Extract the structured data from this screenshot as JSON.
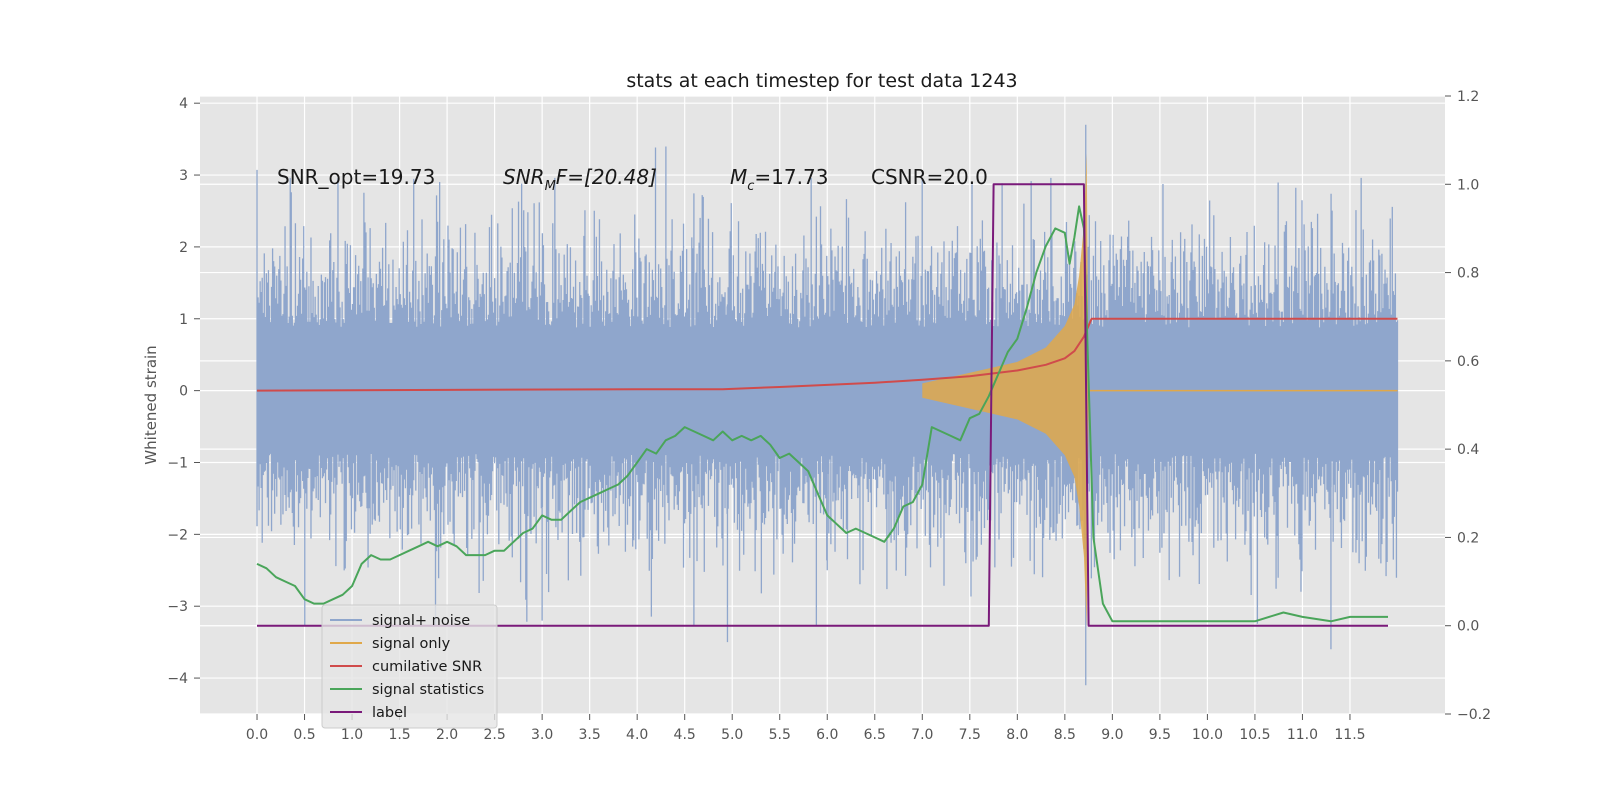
{
  "chart_data": {
    "type": "line",
    "title": "stats at each timestep for test data 1243",
    "ylabel": "Whitened strain",
    "y2label": "",
    "xlabel": "",
    "xlim": [
      -0.6,
      12.5
    ],
    "ylim": [
      -4.5,
      4.1
    ],
    "y2lim": [
      -0.2,
      1.2
    ],
    "xticks": [
      "0.0",
      "0.5",
      "1.0",
      "1.5",
      "2.0",
      "2.5",
      "3.0",
      "3.5",
      "4.0",
      "4.5",
      "5.0",
      "5.5",
      "6.0",
      "6.5",
      "7.0",
      "7.5",
      "8.0",
      "8.5",
      "9.0",
      "9.5",
      "10.0",
      "10.5",
      "11.0",
      "11.5"
    ],
    "yticks": [
      "4",
      "3",
      "2",
      "1",
      "0",
      "−1",
      "−2",
      "−3",
      "−4"
    ],
    "y2ticks": [
      "1.2",
      "1.0",
      "0.8",
      "0.6",
      "0.4",
      "0.2",
      "0.0",
      "−0.2"
    ],
    "grid": true,
    "legend_position": "lower-left",
    "annotations": {
      "snr_opt": "SNR_opt=19.73",
      "snr_mf_main": "SNR",
      "snr_mf_sub": "M",
      "snr_mf_rest": "F=[20.48]",
      "mc_main": "M",
      "mc_sub": "c",
      "mc_rest": "=17.73",
      "csnr": "CSNR=20.0"
    },
    "series": [
      {
        "name": "signal+ noise",
        "axis": "left",
        "color": "#8fa6cc",
        "x_range": [
          0.0,
          12.0
        ],
        "envelope_typical": 1.6,
        "peak_max": 3.7,
        "peak_min": -4.1
      },
      {
        "name": "signal only",
        "axis": "left",
        "color": "#e0a84a",
        "x": [
          7.0,
          7.5,
          8.0,
          8.3,
          8.5,
          8.6,
          8.65,
          8.7,
          8.73,
          8.75
        ],
        "amplitude": [
          0.1,
          0.25,
          0.4,
          0.6,
          0.9,
          1.2,
          1.6,
          2.3,
          3.3,
          0
        ]
      },
      {
        "name": "cumilative SNR",
        "axis": "left",
        "color": "#d04b4b",
        "x": [
          0.0,
          2.0,
          4.0,
          4.9,
          5.5,
          6.0,
          6.5,
          7.0,
          7.5,
          8.0,
          8.3,
          8.5,
          8.6,
          8.7,
          8.78,
          12.0
        ],
        "values": [
          0.0,
          0.01,
          0.02,
          0.02,
          0.05,
          0.08,
          0.11,
          0.15,
          0.2,
          0.28,
          0.36,
          0.45,
          0.55,
          0.75,
          1.0,
          1.0
        ]
      },
      {
        "name": "signal statistics",
        "axis": "right",
        "color": "#4aa55a",
        "x": [
          0.0,
          0.1,
          0.2,
          0.3,
          0.4,
          0.5,
          0.6,
          0.7,
          0.8,
          0.9,
          1.0,
          1.1,
          1.2,
          1.3,
          1.4,
          1.5,
          1.6,
          1.7,
          1.8,
          1.9,
          2.0,
          2.1,
          2.2,
          2.3,
          2.4,
          2.5,
          2.6,
          2.7,
          2.8,
          2.9,
          3.0,
          3.1,
          3.2,
          3.3,
          3.4,
          3.5,
          3.6,
          3.7,
          3.8,
          3.9,
          4.0,
          4.1,
          4.2,
          4.3,
          4.4,
          4.5,
          4.6,
          4.7,
          4.8,
          4.9,
          5.0,
          5.1,
          5.2,
          5.3,
          5.4,
          5.5,
          5.6,
          5.7,
          5.8,
          5.9,
          6.0,
          6.1,
          6.2,
          6.3,
          6.4,
          6.5,
          6.6,
          6.7,
          6.8,
          6.9,
          7.0,
          7.1,
          7.2,
          7.3,
          7.4,
          7.5,
          7.6,
          7.7,
          7.8,
          7.9,
          8.0,
          8.1,
          8.2,
          8.3,
          8.4,
          8.5,
          8.55,
          8.6,
          8.65,
          8.7,
          8.8,
          8.9,
          9.0,
          9.5,
          10.0,
          10.5,
          10.8,
          11.0,
          11.3,
          11.5,
          11.9
        ],
        "values": [
          0.14,
          0.13,
          0.11,
          0.1,
          0.09,
          0.06,
          0.05,
          0.05,
          0.06,
          0.07,
          0.09,
          0.14,
          0.16,
          0.15,
          0.15,
          0.16,
          0.17,
          0.18,
          0.19,
          0.18,
          0.19,
          0.18,
          0.16,
          0.16,
          0.16,
          0.17,
          0.17,
          0.19,
          0.21,
          0.22,
          0.25,
          0.24,
          0.24,
          0.26,
          0.28,
          0.29,
          0.3,
          0.31,
          0.32,
          0.34,
          0.37,
          0.4,
          0.39,
          0.42,
          0.43,
          0.45,
          0.44,
          0.43,
          0.42,
          0.44,
          0.42,
          0.43,
          0.42,
          0.43,
          0.41,
          0.38,
          0.39,
          0.37,
          0.35,
          0.3,
          0.25,
          0.23,
          0.21,
          0.22,
          0.21,
          0.2,
          0.19,
          0.22,
          0.27,
          0.28,
          0.32,
          0.45,
          0.44,
          0.43,
          0.42,
          0.47,
          0.48,
          0.52,
          0.57,
          0.62,
          0.65,
          0.72,
          0.8,
          0.86,
          0.9,
          0.89,
          0.82,
          0.88,
          0.95,
          0.9,
          0.2,
          0.05,
          0.01,
          0.01,
          0.01,
          0.01,
          0.03,
          0.02,
          0.01,
          0.02,
          0.02
        ]
      },
      {
        "name": "label",
        "axis": "right",
        "color": "#7a1a7a",
        "x": [
          0.0,
          7.7,
          7.75,
          8.7,
          8.75,
          11.9
        ],
        "values": [
          0.0,
          0.0,
          1.0,
          1.0,
          0.0,
          0.0
        ]
      }
    ]
  }
}
